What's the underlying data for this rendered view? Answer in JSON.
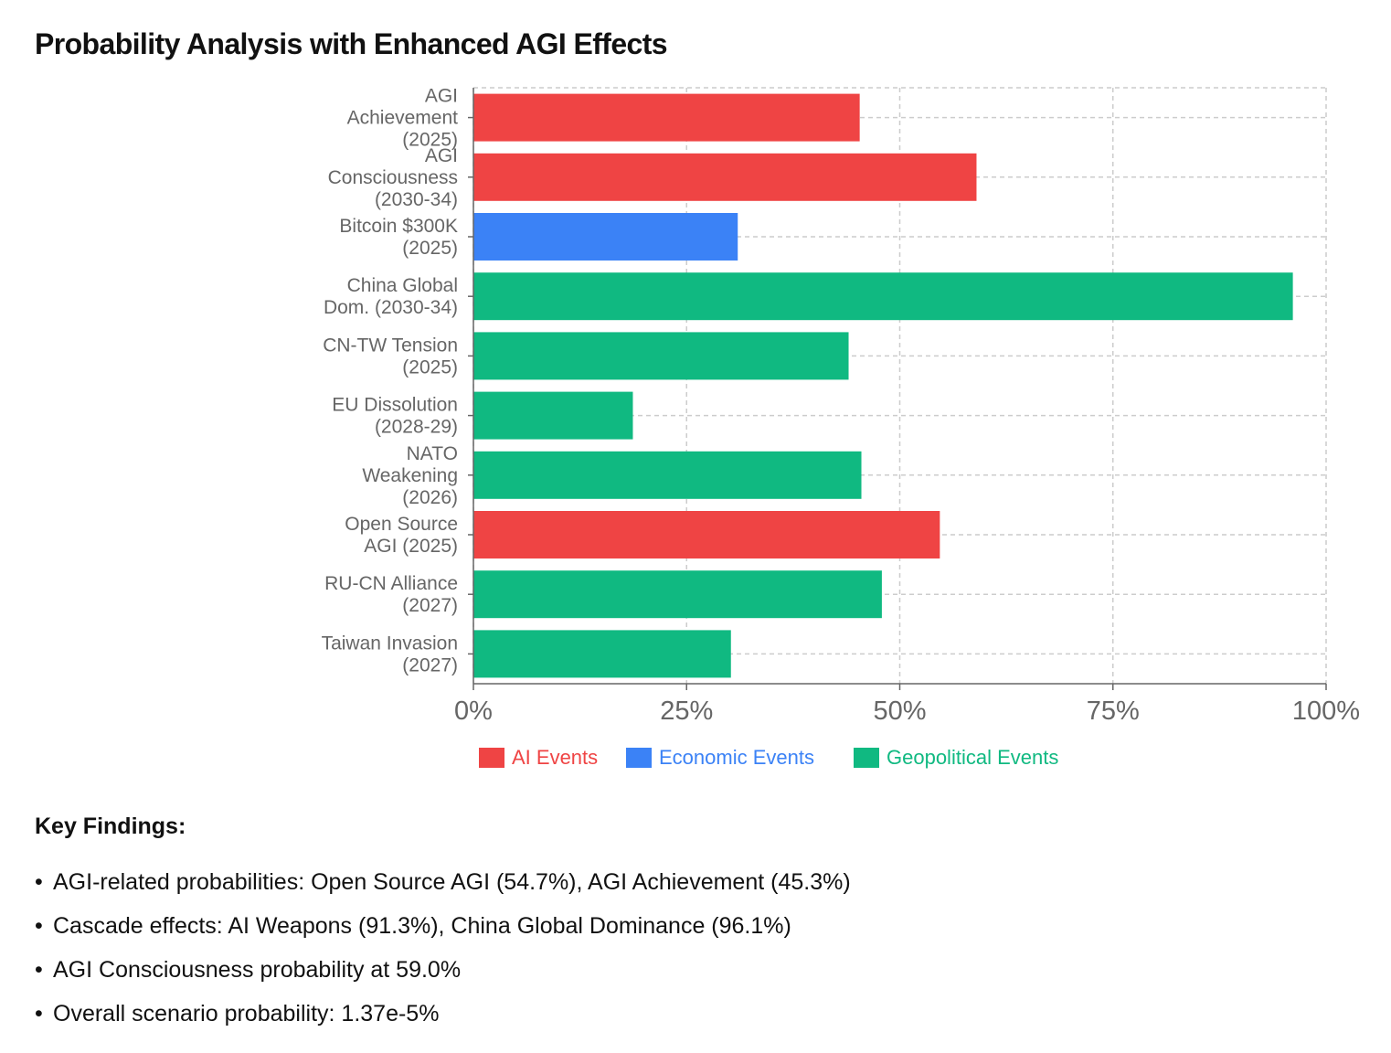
{
  "title": "Probability Analysis with Enhanced AGI Effects",
  "chart_data": {
    "type": "bar",
    "orientation": "horizontal",
    "categories": [
      [
        "AGI",
        "Achievement",
        "(2025)"
      ],
      [
        "AGI",
        "Consciousness",
        "(2030-34)"
      ],
      [
        "Bitcoin $300K",
        "(2025)"
      ],
      [
        "China Global",
        "Dom. (2030-34)"
      ],
      [
        "CN-TW Tension",
        "(2025)"
      ],
      [
        "EU Dissolution",
        "(2028-29)"
      ],
      [
        "NATO",
        "Weakening",
        "(2026)"
      ],
      [
        "Open Source",
        "AGI (2025)"
      ],
      [
        "RU-CN Alliance",
        "(2027)"
      ],
      [
        "Taiwan Invasion",
        "(2027)"
      ]
    ],
    "values": [
      45.3,
      59.0,
      31.0,
      96.1,
      44.0,
      18.7,
      45.5,
      54.7,
      47.9,
      30.2
    ],
    "groups": [
      "AI Events",
      "AI Events",
      "Economic Events",
      "Geopolitical Events",
      "Geopolitical Events",
      "Geopolitical Events",
      "Geopolitical Events",
      "AI Events",
      "Geopolitical Events",
      "Geopolitical Events"
    ],
    "xlim": [
      0,
      100
    ],
    "xticks": [
      "0%",
      "25%",
      "50%",
      "75%",
      "100%"
    ],
    "xlabel": "",
    "ylabel": "",
    "grid": true,
    "legend_position": "bottom",
    "legend": [
      {
        "label": "AI Events",
        "color": "#EF4444"
      },
      {
        "label": "Economic Events",
        "color": "#3B82F6"
      },
      {
        "label": "Geopolitical Events",
        "color": "#10B981"
      }
    ]
  },
  "findings": {
    "title": "Key Findings:",
    "bullet": "•",
    "items": [
      "AGI-related probabilities: Open Source AGI (54.7%), AGI Achievement (45.3%)",
      "Cascade effects: AI Weapons (91.3%), China Global Dominance (96.1%)",
      "AGI Consciousness probability at 59.0%",
      "Overall scenario probability: 1.37e-5%"
    ]
  }
}
